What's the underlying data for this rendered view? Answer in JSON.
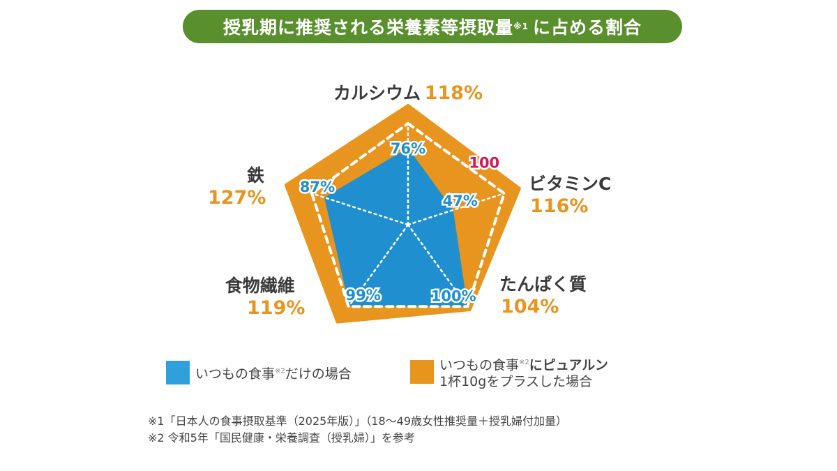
{
  "title": {
    "main": "授乳期に推奨される栄養素等摂取量",
    "sup": "※1",
    "tail": "に占める割合"
  },
  "chart_data": {
    "type": "radar",
    "axes": [
      "カルシウム",
      "ビタミンC",
      "たんぱく質",
      "食物繊維",
      "鉄"
    ],
    "reference_ring": 100,
    "reference_label": "100",
    "series": [
      {
        "name": "いつもの食事※2だけの場合",
        "color": "#1f8fd0",
        "values": [
          76,
          47,
          100,
          99,
          87
        ],
        "labels": [
          "76%",
          "47%",
          "100%",
          "99%",
          "87%"
        ]
      },
      {
        "name": "いつもの食事※2にピュアルン1杯10gをプラスした場合",
        "color": "#e8951f",
        "values": [
          118,
          116,
          104,
          119,
          127
        ],
        "labels": [
          "118%",
          "116%",
          "104%",
          "119%",
          "127%"
        ]
      }
    ]
  },
  "legend": {
    "blue": {
      "a": "いつもの食事",
      "sup": "※2",
      "b": "だけの場合",
      "color": "#2fa0dc"
    },
    "orange": {
      "a": "いつもの食事",
      "sup": "※2",
      "b": "にピュアルン",
      "line2": "1杯10gをプラスした場合",
      "color": "#e8951f"
    }
  },
  "notes": [
    "※1「日本人の食事摂取基準（2025年版）」（18〜49歳女性推奨量＋授乳婦付加量）",
    "※2 令和5年「国民健康・栄養調査（授乳婦）」を参考"
  ]
}
